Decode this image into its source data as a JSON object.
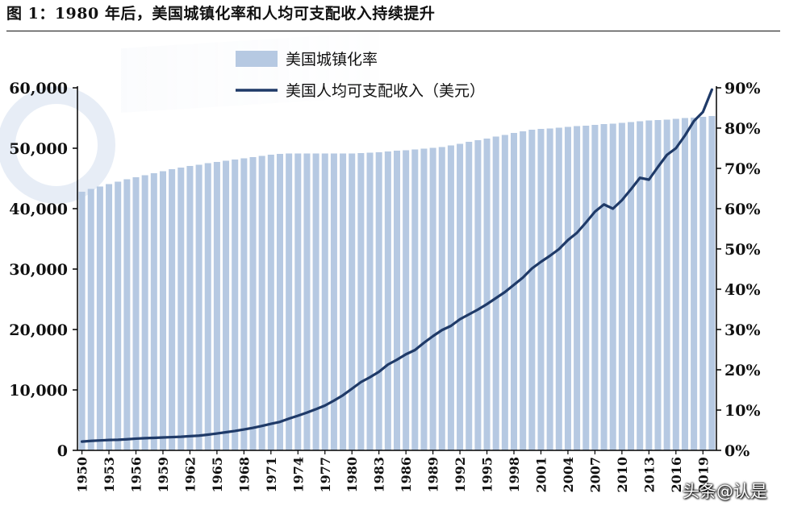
{
  "figure": {
    "title": "图 1：1980 年后，美国城镇化率和人均可支配收入持续提升",
    "watermark": "头条@认是"
  },
  "colors": {
    "bars": "#b6c9e2",
    "line": "#1f3a68",
    "axis": "#000000"
  },
  "chart_data": {
    "type": "bar+line",
    "title": "",
    "xlabel": "",
    "ylabel": "",
    "y_left": {
      "min": 0,
      "max": 60000,
      "ticks": [
        "0",
        "10,000",
        "20,000",
        "30,000",
        "40,000",
        "50,000",
        "60,000"
      ]
    },
    "y_right": {
      "min": 0,
      "max": 90,
      "ticks": [
        "0%",
        "10%",
        "20%",
        "30%",
        "40%",
        "50%",
        "60%",
        "70%",
        "80%",
        "90%"
      ]
    },
    "x_tick_labels": [
      "1950",
      "1953",
      "1956",
      "1959",
      "1962",
      "1965",
      "1968",
      "1971",
      "1974",
      "1977",
      "1980",
      "1983",
      "1986",
      "1989",
      "1992",
      "1995",
      "1998",
      "2001",
      "2004",
      "2007",
      "2010",
      "2013",
      "2016",
      "2019"
    ],
    "legend": {
      "placement": "top-center"
    },
    "x": [
      1950,
      1951,
      1952,
      1953,
      1954,
      1955,
      1956,
      1957,
      1958,
      1959,
      1960,
      1961,
      1962,
      1963,
      1964,
      1965,
      1966,
      1967,
      1968,
      1969,
      1970,
      1971,
      1972,
      1973,
      1974,
      1975,
      1976,
      1977,
      1978,
      1979,
      1980,
      1981,
      1982,
      1983,
      1984,
      1985,
      1986,
      1987,
      1988,
      1989,
      1990,
      1991,
      1992,
      1993,
      1994,
      1995,
      1996,
      1997,
      1998,
      1999,
      2000,
      2001,
      2002,
      2003,
      2004,
      2005,
      2006,
      2007,
      2008,
      2009,
      2010,
      2011,
      2012,
      2013,
      2014,
      2015,
      2016,
      2017,
      2018,
      2019,
      2020
    ],
    "series": [
      {
        "name": "美国城镇化率",
        "type": "bar",
        "axis": "right",
        "values": [
          64.2,
          64.9,
          65.5,
          66.1,
          66.7,
          67.3,
          67.8,
          68.3,
          68.8,
          69.3,
          69.8,
          70.2,
          70.6,
          70.9,
          71.3,
          71.6,
          71.9,
          72.2,
          72.5,
          72.8,
          73.1,
          73.4,
          73.6,
          73.7,
          73.7,
          73.7,
          73.7,
          73.7,
          73.7,
          73.7,
          73.7,
          73.8,
          73.9,
          74.0,
          74.2,
          74.4,
          74.5,
          74.7,
          74.9,
          75.1,
          75.3,
          75.7,
          76.1,
          76.6,
          77.0,
          77.4,
          77.9,
          78.3,
          78.8,
          79.2,
          79.6,
          79.8,
          79.9,
          80.1,
          80.3,
          80.5,
          80.6,
          80.8,
          81.0,
          81.1,
          81.3,
          81.5,
          81.7,
          81.9,
          82.0,
          82.1,
          82.3,
          82.5,
          82.6,
          82.8,
          83.0
        ]
      },
      {
        "name": "美国人均可支配收入（美元）",
        "type": "line",
        "axis": "left",
        "values": [
          1450,
          1570,
          1640,
          1720,
          1750,
          1830,
          1940,
          2020,
          2070,
          2130,
          2190,
          2250,
          2350,
          2430,
          2600,
          2790,
          3000,
          3210,
          3460,
          3720,
          4050,
          4390,
          4710,
          5250,
          5730,
          6250,
          6810,
          7420,
          8230,
          9120,
          10200,
          11300,
          12100,
          13000,
          14200,
          15000,
          15900,
          16600,
          17800,
          18900,
          19900,
          20600,
          21700,
          22500,
          23300,
          24200,
          25200,
          26200,
          27400,
          28600,
          30100,
          31200,
          32200,
          33300,
          34800,
          36000,
          37700,
          39500,
          40700,
          40000,
          41400,
          43200,
          45100,
          44800,
          46900,
          48900,
          50000,
          52100,
          54500,
          56000,
          59700
        ]
      }
    ]
  }
}
